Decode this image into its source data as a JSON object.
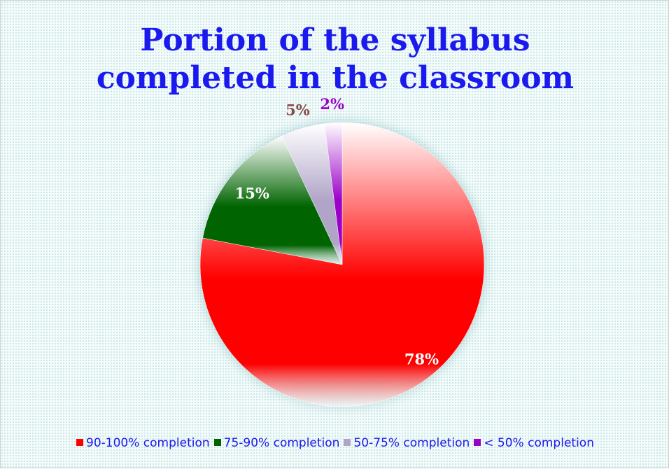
{
  "chart_data": {
    "type": "pie",
    "title": "Portion of the syllabus completed in the classroom",
    "categories": [
      "90-100% completion",
      "75-90% completion",
      "50-75% completion",
      "< 50% completion"
    ],
    "values": [
      78,
      15,
      5,
      2
    ],
    "value_labels": [
      "78%",
      "15%",
      "5%",
      "2%"
    ],
    "colors": [
      "#ff0000",
      "#006400",
      "#b0a4c8",
      "#9a00c8"
    ],
    "label_colors": [
      "#ffffff",
      "#ffffff",
      "#8b4a4a",
      "#9a00c8"
    ],
    "legend": "bottom"
  }
}
